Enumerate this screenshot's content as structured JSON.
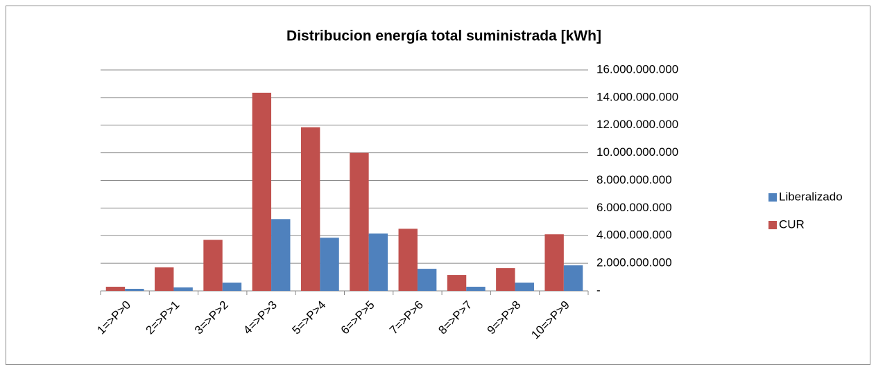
{
  "chart_data": {
    "type": "bar",
    "title": "Distribucion energía total suministrada [kWh]",
    "categories": [
      "1=>P>0",
      "2=>P>1",
      "3=>P>2",
      "4=>P>3",
      "5=>P>4",
      "6=>P>5",
      "7=>P>6",
      "8=>P>7",
      "9=>P>8",
      "10=>P>9"
    ],
    "series": [
      {
        "name": "CUR",
        "color": "#c0504d",
        "values": [
          300000000,
          1700000000,
          3700000000,
          14350000000,
          11850000000,
          10000000000,
          4500000000,
          1150000000,
          1650000000,
          4100000000
        ]
      },
      {
        "name": "Liberalizado",
        "color": "#4f81bd",
        "values": [
          150000000,
          250000000,
          600000000,
          5200000000,
          3850000000,
          4150000000,
          1600000000,
          300000000,
          600000000,
          1850000000
        ]
      }
    ],
    "ylim": [
      0,
      16000000000
    ],
    "yticks": [
      {
        "value": 0,
        "label": "-"
      },
      {
        "value": 2000000000,
        "label": "2.000.000.000"
      },
      {
        "value": 4000000000,
        "label": "4.000.000.000"
      },
      {
        "value": 6000000000,
        "label": "6.000.000.000"
      },
      {
        "value": 8000000000,
        "label": "8.000.000.000"
      },
      {
        "value": 10000000000,
        "label": "10.000.000.000"
      },
      {
        "value": 12000000000,
        "label": "12.000.000.000"
      },
      {
        "value": 14000000000,
        "label": "14.000.000.000"
      },
      {
        "value": 16000000000,
        "label": "16.000.000.000"
      }
    ],
    "y_axis_side": "right",
    "grid": true,
    "legend": "right"
  }
}
